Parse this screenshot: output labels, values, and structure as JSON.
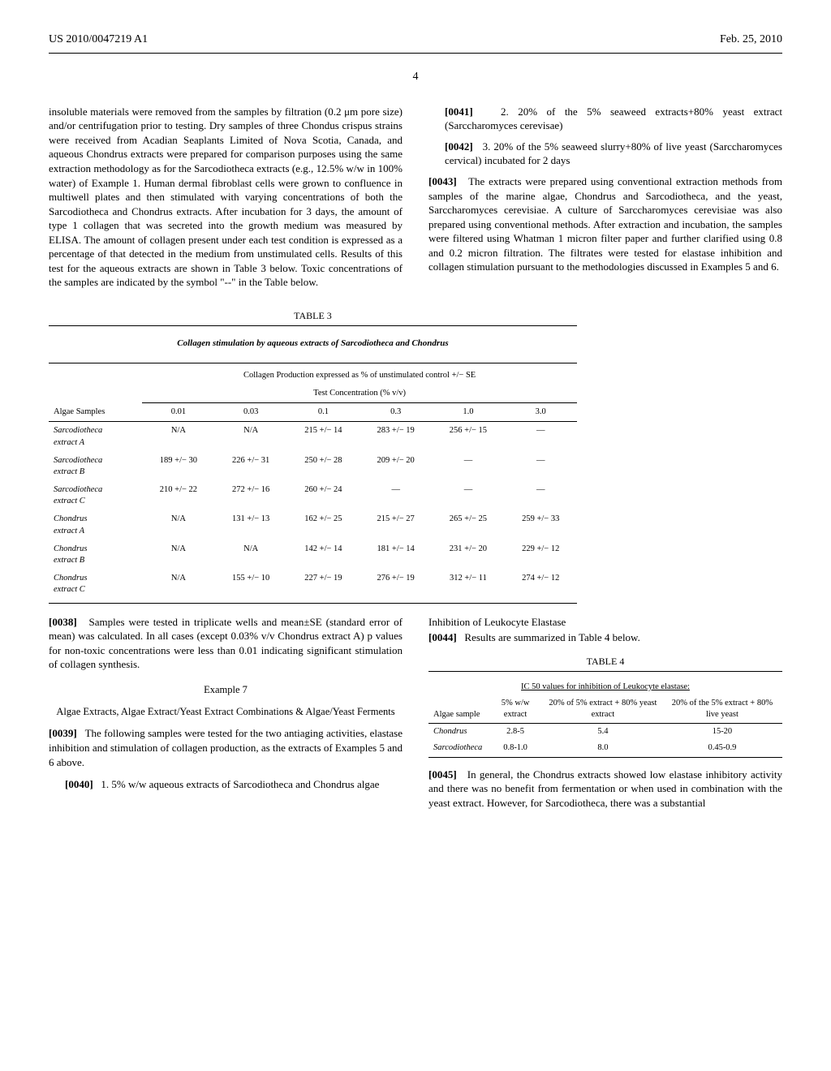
{
  "header": {
    "pub_number": "US 2010/0047219 A1",
    "date": "Feb. 25, 2010",
    "page": "4"
  },
  "left_col": {
    "para1": "insoluble materials were removed from the samples by filtration (0.2 μm pore size) and/or centrifugation prior to testing. Dry samples of three Chondus crispus strains were received from Acadian Seaplants Limited of Nova Scotia, Canada, and aqueous Chondrus extracts were prepared for comparison purposes using the same extraction methodology as for the Sarcodiotheca extracts (e.g., 12.5% w/w in 100% water) of Example 1. Human dermal fibroblast cells were grown to confluence in multiwell plates and then stimulated with varying concentrations of both the Sarcodiotheca and Chondrus extracts. After incubation for 3 days, the amount of type 1 collagen that was secreted into the growth medium was measured by ELISA. The amount of collagen present under each test condition is expressed as a percentage of that detected in the medium from unstimulated cells. Results of this test for the aqueous extracts are shown in Table 3 below. Toxic concentrations of the samples are indicated by the symbol \"--\" in the Table below."
  },
  "right_col": {
    "item2_num": "[0041]",
    "item2": "2. 20% of the 5% seaweed extracts+80% yeast extract (Sarccharomyces cerevisae)",
    "item3_num": "[0042]",
    "item3": "3. 20% of the 5% seaweed slurry+80% of live yeast (Sarccharomyces cervical) incubated for 2 days",
    "para43_num": "[0043]",
    "para43": "The extracts were prepared using conventional extraction methods from samples of the marine algae, Chondrus and Sarcodiotheca, and the yeast, Sarccharomyces cerevisiae. A culture of Sarccharomyces cerevisiae was also prepared using conventional methods. After extraction and incubation, the samples were filtered using Whatman 1 micron filter paper and further clarified using 0.8 and 0.2 micron filtration. The filtrates were tested for elastase inhibition and collagen stimulation pursuant to the methodologies discussed in Examples 5 and 6."
  },
  "table3": {
    "label": "TABLE 3",
    "caption": "Collagen stimulation by aqueous extracts of Sarcodiotheca and Chondrus",
    "subcaption1": "Collagen Production expressed as % of unstimulated control +/− SE",
    "subcaption2": "Test Concentration (% v/v)",
    "col_header_label": "Algae Samples",
    "columns": [
      "0.01",
      "0.03",
      "0.1",
      "0.3",
      "1.0",
      "3.0"
    ],
    "rows": [
      {
        "label": "Sarcodiotheca extract A",
        "vals": [
          "N/A",
          "N/A",
          "215 +/− 14",
          "283 +/− 19",
          "256 +/− 15",
          "—"
        ]
      },
      {
        "label": "Sarcodiotheca extract B",
        "vals": [
          "189 +/− 30",
          "226 +/− 31",
          "250 +/− 28",
          "209 +/− 20",
          "—",
          "—"
        ]
      },
      {
        "label": "Sarcodiotheca extract C",
        "vals": [
          "210 +/− 22",
          "272 +/− 16",
          "260 +/− 24",
          "—",
          "—",
          "—"
        ]
      },
      {
        "label": "Chondrus extract A",
        "vals": [
          "N/A",
          "131 +/− 13",
          "162 +/− 25",
          "215 +/− 27",
          "265 +/− 25",
          "259 +/− 33"
        ]
      },
      {
        "label": "Chondrus extract B",
        "vals": [
          "N/A",
          "N/A",
          "142 +/− 14",
          "181 +/− 14",
          "231 +/− 20",
          "229 +/− 12"
        ]
      },
      {
        "label": "Chondrus extract C",
        "vals": [
          "N/A",
          "155 +/− 10",
          "227 +/− 19",
          "276 +/− 19",
          "312 +/− 11",
          "274 +/− 12"
        ]
      }
    ]
  },
  "lower_left": {
    "para38_num": "[0038]",
    "para38": "Samples were tested in triplicate wells and mean±SE (standard error of mean) was calculated. In all cases (except 0.03% v/v Chondrus extract A) p values for non-toxic concentrations were less than 0.01 indicating significant stimulation of collagen synthesis.",
    "example_label": "Example 7",
    "example_sub": "Algae Extracts, Algae Extract/Yeast Extract Combinations & Algae/Yeast Ferments",
    "para39_num": "[0039]",
    "para39": "The following samples were tested for the two antiaging activities, elastase inhibition and stimulation of collagen production, as the extracts of Examples 5 and 6 above.",
    "item1_num": "[0040]",
    "item1": "1. 5% w/w aqueous extracts of Sarcodiotheca and Chondrus algae"
  },
  "lower_right": {
    "heading": "Inhibition of Leukocyte Elastase",
    "para44_num": "[0044]",
    "para44": "Results are summarized in Table 4 below.",
    "para45_num": "[0045]",
    "para45": "In general, the Chondrus extracts showed low elastase inhibitory activity and there was no benefit from fermentation or when used in combination with the yeast extract. However, for Sarcodiotheca, there was a substantial"
  },
  "table4": {
    "label": "TABLE 4",
    "caption": "IC 50 values for inhibition of Leukocyte elastase:",
    "col_header_label": "Algae sample",
    "columns": [
      "5% w/w extract",
      "20% of 5% extract + 80% yeast extract",
      "20% of the 5% extract + 80% live yeast"
    ],
    "rows": [
      {
        "label": "Chondrus",
        "vals": [
          "2.8-5",
          "5.4",
          "15-20"
        ]
      },
      {
        "label": "Sarcodiotheca",
        "vals": [
          "0.8-1.0",
          "8.0",
          "0.45-0.9"
        ]
      }
    ]
  }
}
